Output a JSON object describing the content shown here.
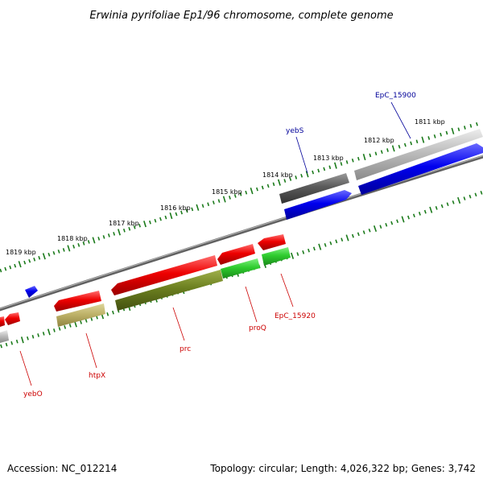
{
  "title": "Erwinia pyrifoliae Ep1/96 chromosome, complete genome",
  "footer": {
    "accession": "Accession: NC_012214",
    "summary": "Topology: circular; Length: 4,026,322 bp; Genes: 3,742"
  },
  "colors": {
    "backbone": "#707070",
    "tick": "#1a7a1a",
    "forward_cds": "#0000ee",
    "reverse_cds": "#ee0000",
    "forward_gene": "#5a5a5a",
    "forward_gene_light": "#bdbdbd",
    "reverse_gene_olive": "#6b7f1f",
    "reverse_gene_khaki": "#bfb36a",
    "reverse_gene_green": "#2ecc2e",
    "label_forward": "#000099",
    "label_reverse": "#cc0000"
  },
  "tick_labels": [
    {
      "text": "1811 kbp",
      "kbp": 1811
    },
    {
      "text": "1812 kbp",
      "kbp": 1812
    },
    {
      "text": "1813 kbp",
      "kbp": 1813
    },
    {
      "text": "1814 kbp",
      "kbp": 1814
    },
    {
      "text": "1815 kbp",
      "kbp": 1815
    },
    {
      "text": "1816 kbp",
      "kbp": 1816
    },
    {
      "text": "1817 kbp",
      "kbp": 1817
    },
    {
      "text": "1818 kbp",
      "kbp": 1818
    },
    {
      "text": "1819 kbp",
      "kbp": 1819
    }
  ],
  "gene_labels": [
    {
      "text": "EpC_15900",
      "strand": "forward"
    },
    {
      "text": "yebS",
      "strand": "forward"
    },
    {
      "text": "EpC_15920",
      "strand": "reverse"
    },
    {
      "text": "proQ",
      "strand": "reverse"
    },
    {
      "text": "prc",
      "strand": "reverse"
    },
    {
      "text": "htpX",
      "strand": "reverse"
    },
    {
      "text": "yebO",
      "strand": "reverse"
    }
  ]
}
